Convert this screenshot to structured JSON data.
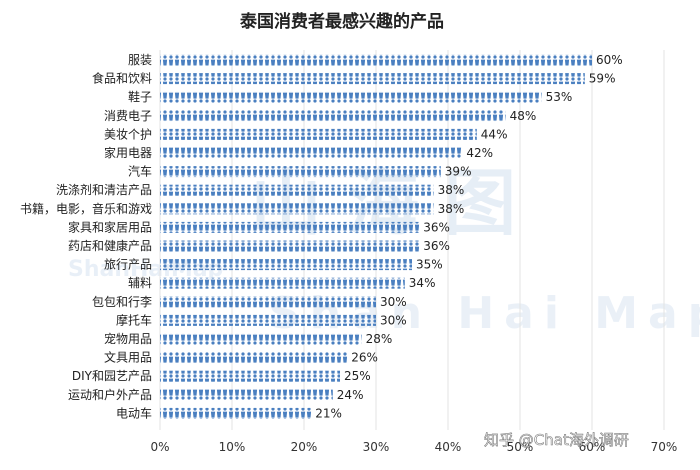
{
  "chart_data": {
    "type": "bar",
    "orientation": "horizontal",
    "title": "泰国消费者最感兴趣的产品",
    "categories": [
      "服装",
      "食品和饮料",
      "鞋子",
      "消费电子",
      "美妆个护",
      "家用电器",
      "汽车",
      "洗涤剂和清洁产品",
      "书籍，电影，音乐和游戏",
      "家具和家居用品",
      "药店和健康产品",
      "旅行产品",
      "辅料",
      "包包和行李",
      "摩托车",
      "宠物用品",
      "文具用品",
      "DIY和园艺产品",
      "运动和户外产品",
      "电动车"
    ],
    "values": [
      60,
      59,
      53,
      48,
      44,
      42,
      39,
      38,
      38,
      36,
      36,
      35,
      34,
      30,
      30,
      28,
      26,
      25,
      24,
      21
    ],
    "value_labels": [
      "60%",
      "59%",
      "53%",
      "48%",
      "44%",
      "42%",
      "39%",
      "38%",
      "38%",
      "36%",
      "36%",
      "35%",
      "34%",
      "30%",
      "30%",
      "28%",
      "26%",
      "25%",
      "24%",
      "21%"
    ],
    "xlim": [
      0,
      70
    ],
    "xticks": [
      "0%",
      "10%",
      "20%",
      "30%",
      "40%",
      "50%",
      "60%",
      "70%"
    ],
    "grid": true,
    "bar_color": "#4a7fc0",
    "watermark": {
      "big": "山 海 图",
      "small": "ShanHaiMap",
      "mid": "Shan Hai Map"
    },
    "credit": "知乎 @Chat海外调研"
  }
}
